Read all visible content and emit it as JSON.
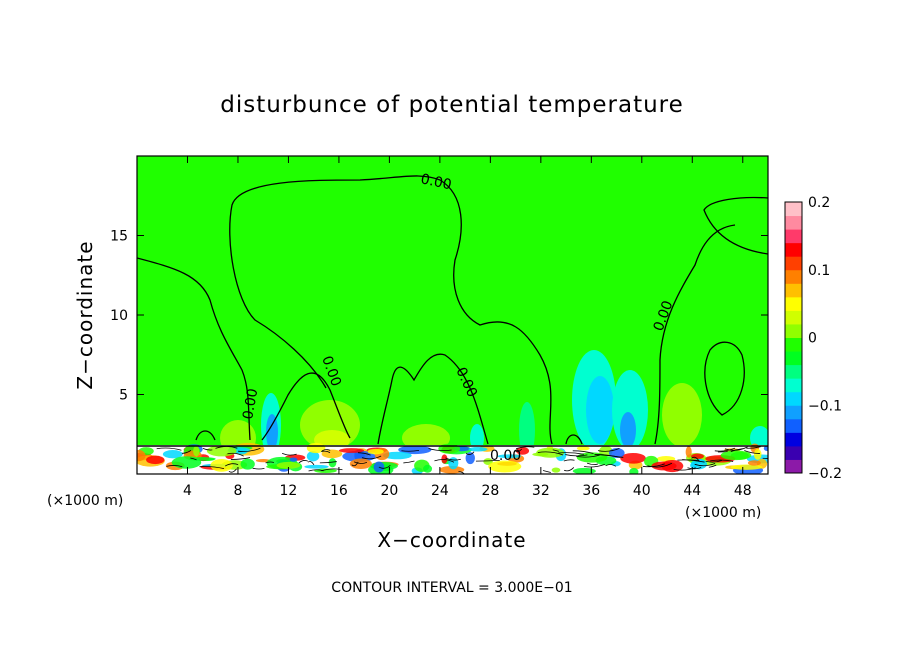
{
  "chart_data": {
    "type": "heatmap",
    "title": "disturbunce of potential temperature",
    "xlabel": "X−coordinate",
    "ylabel": "Z−coordinate",
    "x_unit": "(×1000 m)",
    "z_unit": "(×1000 m)",
    "xlim": [
      0,
      50
    ],
    "ylim": [
      0,
      20
    ],
    "x_ticks": [
      4,
      8,
      12,
      16,
      20,
      24,
      28,
      32,
      36,
      40,
      44,
      48
    ],
    "x_tick_labels": [
      "4",
      "8",
      "12",
      "16",
      "20",
      "24",
      "28",
      "32",
      "36",
      "40",
      "44",
      "48"
    ],
    "y_ticks": [
      5,
      10,
      15
    ],
    "y_tick_labels": [
      "5",
      "10",
      "15"
    ],
    "colorbar": {
      "min": -0.2,
      "max": 0.2,
      "ticks": [
        0.2,
        0.1,
        0,
        -0.1,
        -0.2
      ],
      "tick_labels": [
        "0.2",
        "0.1",
        "0",
        "−0.1",
        "−0.2"
      ],
      "colors": [
        "#8c1aa8",
        "#3a00b0",
        "#0000e0",
        "#1060ff",
        "#10a0ff",
        "#00d8ff",
        "#00ffd0",
        "#00ff80",
        "#00ff20",
        "#20ff00",
        "#90ff00",
        "#d0ff00",
        "#ffff00",
        "#ffc000",
        "#ff8000",
        "#ff4000",
        "#ff0000",
        "#ff3a6a",
        "#ff8aa0",
        "#ffc0c8"
      ]
    },
    "background_value": 0,
    "contour_value": 0.0,
    "contour_label": "0.00",
    "footer": "CONTOUR INTERVAL = 3.000E−01"
  }
}
